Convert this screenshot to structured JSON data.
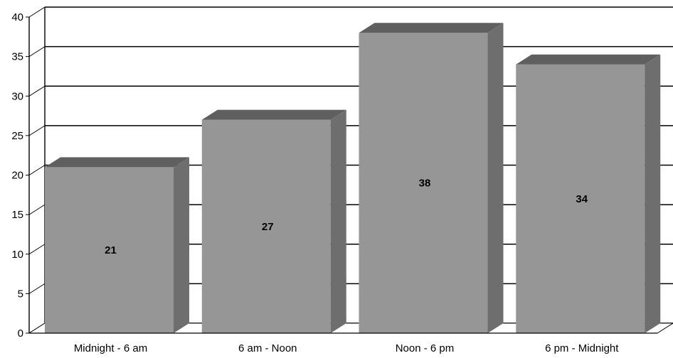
{
  "chart_data": {
    "type": "bar",
    "title": "",
    "xlabel": "",
    "ylabel": "",
    "categories": [
      "Midnight - 6 am",
      "6 am - Noon",
      "Noon - 6 pm",
      "6 pm - Midnight"
    ],
    "values": [
      21,
      27,
      38,
      34
    ],
    "data_labels": [
      "21",
      "27",
      "38",
      "34"
    ],
    "ylim": [
      0,
      40
    ],
    "yticks": [
      0,
      5,
      10,
      15,
      20,
      25,
      30,
      35,
      40
    ],
    "grid": true,
    "legend": "none",
    "style": "3d",
    "colors": {
      "bar_front": "#969696",
      "bar_top": "#5f5f5f",
      "bar_side": "#6e6e6e",
      "grid": "#000000"
    }
  }
}
